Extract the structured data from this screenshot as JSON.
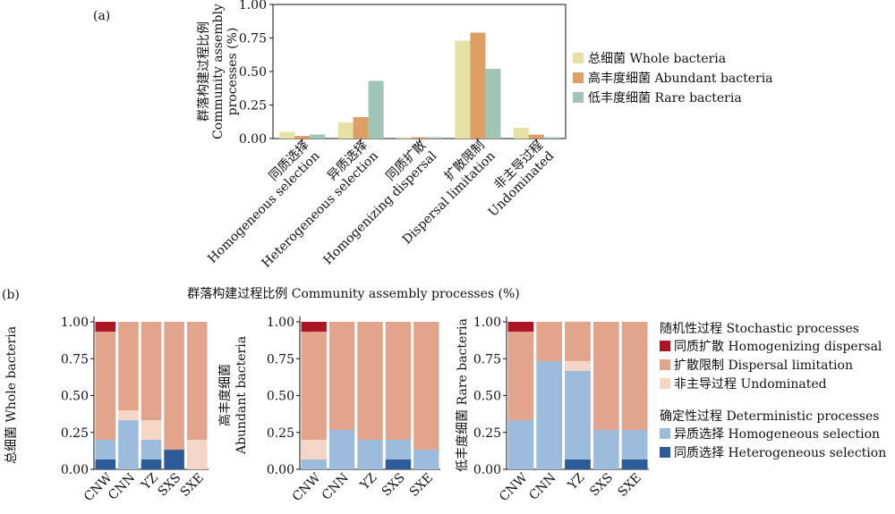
{
  "colors": {
    "whole": "#e6e2a6",
    "abundant": "#dd9f64",
    "rare": "#a1c4b8",
    "hom_dispersal": "#ad1524",
    "dispersal_limitation": "#e3a48c",
    "undominated": "#f5d5c5",
    "het_selection": "#9dbcdc",
    "hom_selection": "#2c5c98"
  },
  "chart_data": [
    {
      "id": "a",
      "type": "bar",
      "panel_label": "(a)",
      "ylabel_lines": [
        "群落构建过程比例",
        "Community assembly",
        "processes (%)"
      ],
      "ylim": [
        0,
        1
      ],
      "yticks": [
        "0.00",
        "0.25",
        "0.50",
        "0.75",
        "1.00"
      ],
      "ytick_values": [
        0,
        0.25,
        0.5,
        0.75,
        1
      ],
      "grid": false,
      "legend_position": "right",
      "categories": [
        {
          "cn": "同质选择",
          "en": "Homogeneous selection"
        },
        {
          "cn": "异质选择",
          "en": "Heterogeneous selection"
        },
        {
          "cn": "同质扩散",
          "en": "Homogenizing dispersal"
        },
        {
          "cn": "扩散限制",
          "en": "Dispersal limitation"
        },
        {
          "cn": "非主导过程",
          "en": "Undominated"
        }
      ],
      "series": [
        {
          "name": "总细菌 Whole bacteria",
          "color_key": "whole",
          "values": [
            0.05,
            0.12,
            0.01,
            0.73,
            0.08
          ]
        },
        {
          "name": "高丰度细菌 Abundant bacteria",
          "color_key": "abundant",
          "values": [
            0.02,
            0.16,
            0.01,
            0.79,
            0.03
          ]
        },
        {
          "name": "低丰度细菌 Rare bacteria",
          "color_key": "rare",
          "values": [
            0.03,
            0.43,
            0.01,
            0.52,
            0.01
          ]
        }
      ]
    },
    {
      "id": "b",
      "type": "bar",
      "stacked": true,
      "panel_label": "(b)",
      "title": "群落构建过程比例 Community assembly processes (%)",
      "ylim": [
        0,
        1
      ],
      "yticks": [
        "0.00",
        "0.25",
        "0.50",
        "0.75",
        "1.00"
      ],
      "ytick_values": [
        0,
        0.25,
        0.5,
        0.75,
        1
      ],
      "categories": [
        "CNW",
        "CNN",
        "YZ",
        "SXS",
        "SXE"
      ],
      "stack_order": [
        "hom_selection",
        "het_selection",
        "undominated",
        "dispersal_limitation",
        "hom_dispersal"
      ],
      "legend": {
        "position": "right",
        "groups": [
          {
            "title": "随机性过程 Stochastic processes",
            "items": [
              {
                "label": "同质扩散 Homogenizing dispersal",
                "color_key": "hom_dispersal"
              },
              {
                "label": "扩散限制 Dispersal limitation",
                "color_key": "dispersal_limitation"
              },
              {
                "label": "非主导过程 Undominated",
                "color_key": "undominated"
              }
            ]
          },
          {
            "title": "确定性过程 Deterministic processes",
            "items": [
              {
                "label": "异质选择 Homogeneous selection",
                "color_key": "het_selection"
              },
              {
                "label": "同质选择 Heterogeneous selection",
                "color_key": "hom_selection"
              }
            ]
          }
        ]
      },
      "panels": [
        {
          "ylabel_lines": [
            "总细菌 Whole bacteria"
          ],
          "data": {
            "hom_selection": [
              0.067,
              0,
              0.067,
              0.133,
              0
            ],
            "het_selection": [
              0.133,
              0.333,
              0.133,
              0,
              0
            ],
            "undominated": [
              0,
              0.067,
              0.133,
              0,
              0.2
            ],
            "dispersal_limitation": [
              0.733,
              0.6,
              0.667,
              0.867,
              0.8
            ],
            "hom_dispersal": [
              0.067,
              0,
              0,
              0,
              0
            ]
          }
        },
        {
          "ylabel_lines": [
            "高丰度细菌",
            "Abundant bacteria"
          ],
          "data": {
            "hom_selection": [
              0,
              0,
              0,
              0.067,
              0
            ],
            "het_selection": [
              0.067,
              0.267,
              0.2,
              0.133,
              0.133
            ],
            "undominated": [
              0.133,
              0,
              0,
              0,
              0
            ],
            "dispersal_limitation": [
              0.733,
              0.733,
              0.8,
              0.8,
              0.867
            ],
            "hom_dispersal": [
              0.067,
              0,
              0,
              0,
              0
            ]
          }
        },
        {
          "ylabel_lines": [
            "低丰度细菌 Rare bacteria"
          ],
          "data": {
            "hom_selection": [
              0,
              0,
              0.067,
              0,
              0.067
            ],
            "het_selection": [
              0.333,
              0.733,
              0.6,
              0.267,
              0.2
            ],
            "undominated": [
              0,
              0,
              0.067,
              0,
              0
            ],
            "dispersal_limitation": [
              0.6,
              0.267,
              0.267,
              0.733,
              0.733
            ],
            "hom_dispersal": [
              0.067,
              0,
              0,
              0,
              0
            ]
          }
        }
      ]
    }
  ]
}
